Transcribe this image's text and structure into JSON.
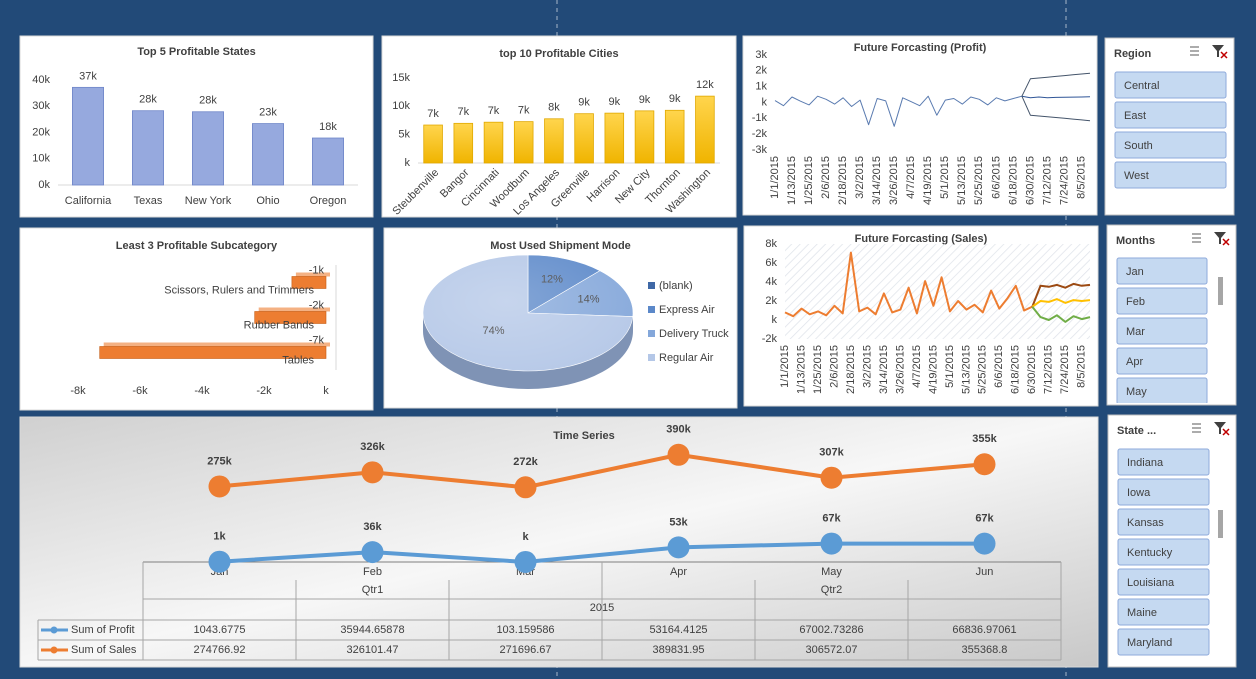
{
  "chart_data": [
    {
      "type": "bar",
      "title": "Top 5 Profitable States",
      "categories": [
        "California",
        "Texas",
        "New York",
        "Ohio",
        "Oregon"
      ],
      "values": [
        37200,
        28300,
        27900,
        23400,
        17900
      ],
      "value_labels": [
        "37k",
        "28k",
        "28k",
        "23k",
        "18k"
      ],
      "color": "#96a9de",
      "ylim": [
        0,
        40000
      ],
      "yticks": [
        {
          "value": 0,
          "label": "0k"
        },
        {
          "value": 10000,
          "label": "10k"
        },
        {
          "value": 20000,
          "label": "20k"
        },
        {
          "value": 30000,
          "label": "30k"
        },
        {
          "value": 40000,
          "label": "40k"
        }
      ]
    },
    {
      "type": "bar",
      "title": "top 10 Profitable Cities",
      "categories": [
        "Steubenville",
        "Bangor",
        "Cincinnati",
        "Woodbum",
        "Los Angeles",
        "Greenville",
        "Harrison",
        "New City",
        "Thornton",
        "Washington"
      ],
      "values": [
        6700,
        7000,
        7200,
        7300,
        7800,
        8700,
        8800,
        9200,
        9300,
        11800
      ],
      "value_labels": [
        "7k",
        "7k",
        "7k",
        "7k",
        "8k",
        "9k",
        "9k",
        "9k",
        "9k",
        "12k"
      ],
      "color": "#ffc000",
      "ylim": [
        0,
        15000
      ],
      "yticks": [
        {
          "value": 0,
          "label": "k"
        },
        {
          "value": 5000,
          "label": "5k"
        },
        {
          "value": 10000,
          "label": "10k"
        },
        {
          "value": 15000,
          "label": "15k"
        }
      ]
    },
    {
      "type": "line",
      "title": "Future Forcasting (Profit)",
      "categories": [
        "1/1/2015",
        null,
        "1/13/2015",
        null,
        "1/25/2015",
        null,
        "2/6/2015",
        null,
        "2/18/2015",
        null,
        "3/2/2015",
        null,
        "3/14/2015",
        null,
        "3/26/2015",
        null,
        "4/7/2015",
        null,
        "4/19/2015",
        null,
        "5/1/2015",
        null,
        "5/13/2015",
        null,
        "5/25/2015",
        null,
        "6/6/2015",
        null,
        "6/18/2015",
        null,
        "6/30/2015",
        null,
        "7/12/2015",
        null,
        "7/24/2015",
        null,
        "8/5/2015",
        null
      ],
      "series": [
        {
          "color": "#5a7bb0",
          "values": [
            120,
            -200,
            350,
            80,
            -150,
            400,
            200,
            -100,
            300,
            -250,
            150,
            -1400,
            250,
            100,
            -1500,
            300,
            50,
            -200,
            400,
            -800,
            150,
            250,
            -100,
            350,
            200,
            -150,
            300,
            100,
            250,
            400,
            null,
            null,
            null,
            null,
            null,
            null,
            null,
            null
          ]
        },
        {
          "color": "#44546a",
          "values": [
            null,
            null,
            null,
            null,
            null,
            null,
            null,
            null,
            null,
            null,
            null,
            null,
            null,
            null,
            null,
            null,
            null,
            null,
            null,
            null,
            null,
            null,
            null,
            null,
            null,
            null,
            null,
            null,
            null,
            400,
            1500,
            1550,
            1600,
            1650,
            1700,
            1750,
            1800,
            1850
          ]
        },
        {
          "color": "#2f5597",
          "values": [
            null,
            null,
            null,
            null,
            null,
            null,
            null,
            null,
            null,
            null,
            null,
            null,
            null,
            null,
            null,
            null,
            null,
            null,
            null,
            null,
            null,
            null,
            null,
            null,
            null,
            null,
            null,
            null,
            null,
            400,
            300,
            350,
            300,
            320,
            330,
            340,
            350,
            360
          ]
        },
        {
          "color": "#44546a",
          "values": [
            null,
            null,
            null,
            null,
            null,
            null,
            null,
            null,
            null,
            null,
            null,
            null,
            null,
            null,
            null,
            null,
            null,
            null,
            null,
            null,
            null,
            null,
            null,
            null,
            null,
            null,
            null,
            null,
            null,
            400,
            -800,
            -850,
            -900,
            -950,
            -1000,
            -1050,
            -1100,
            -1150
          ]
        }
      ],
      "ylim": [
        -3000,
        3000
      ],
      "yticks": [
        {
          "value": -3000,
          "label": "-3k"
        },
        {
          "value": -2000,
          "label": "-2k"
        },
        {
          "value": -1000,
          "label": "-1k"
        },
        {
          "value": 0,
          "label": "k"
        },
        {
          "value": 1000,
          "label": "1k"
        },
        {
          "value": 2000,
          "label": "2k"
        },
        {
          "value": 3000,
          "label": "3k"
        }
      ]
    },
    {
      "type": "bar",
      "orientation": "horizontal",
      "title": "Least 3 Profitable Subcategory",
      "categories": [
        "Tables",
        "Rubber Bands",
        "Scissors, Rulers and Trimmers"
      ],
      "values": [
        -7300,
        -2300,
        -1100
      ],
      "value_labels": [
        "-7k",
        "-2k",
        "-1k"
      ],
      "color": "#ed7d31",
      "xlim": [
        -8000,
        0
      ],
      "xticks": [
        {
          "value": -8000,
          "label": "-8k"
        },
        {
          "value": -6000,
          "label": "-6k"
        },
        {
          "value": -4000,
          "label": "-4k"
        },
        {
          "value": -2000,
          "label": "-2k"
        },
        {
          "value": 0,
          "label": "k"
        }
      ]
    },
    {
      "type": "pie",
      "title": "Most Used Shipment Mode",
      "categories": [
        "(blank)",
        "Express Air",
        "Delivery Truck",
        "Regular Air"
      ],
      "values": [
        0,
        12,
        14,
        74
      ],
      "value_labels": [
        null,
        "12%",
        "14%",
        "74%"
      ],
      "colors": [
        "#3f68a6",
        "#5b88c9",
        "#84a7da",
        "#b4c7e7"
      ],
      "legend": "right"
    },
    {
      "type": "line",
      "title": "Future Forcasting (Sales)",
      "categories": [
        "1/1/2015",
        null,
        "1/13/2015",
        null,
        "1/25/2015",
        null,
        "2/6/2015",
        null,
        "2/18/2015",
        null,
        "3/2/2015",
        null,
        "3/14/2015",
        null,
        "3/26/2015",
        null,
        "4/7/2015",
        null,
        "4/19/2015",
        null,
        "5/1/2015",
        null,
        "5/13/2015",
        null,
        "5/25/2015",
        null,
        "6/6/2015",
        null,
        "6/18/2015",
        null,
        "6/30/2015",
        null,
        "7/12/2015",
        null,
        "7/24/2015",
        null,
        "8/5/2015",
        null
      ],
      "series": [
        {
          "color": "#ed7d31",
          "values": [
            800,
            400,
            1200,
            600,
            900,
            500,
            1500,
            700,
            7100,
            900,
            1300,
            600,
            2800,
            800,
            1100,
            3400,
            700,
            4100,
            1500,
            4500,
            900,
            2000,
            1100,
            1600,
            800,
            3100,
            1200,
            2300,
            3600,
            1000,
            1400,
            null,
            null,
            null,
            null,
            null,
            null,
            null
          ]
        },
        {
          "color": "#9c4a12",
          "values": [
            null,
            null,
            null,
            null,
            null,
            null,
            null,
            null,
            null,
            null,
            null,
            null,
            null,
            null,
            null,
            null,
            null,
            null,
            null,
            null,
            null,
            null,
            null,
            null,
            null,
            null,
            null,
            null,
            null,
            null,
            1400,
            3600,
            3500,
            3700,
            3400,
            3800,
            3600,
            3700
          ]
        },
        {
          "color": "#ffc000",
          "values": [
            null,
            null,
            null,
            null,
            null,
            null,
            null,
            null,
            null,
            null,
            null,
            null,
            null,
            null,
            null,
            null,
            null,
            null,
            null,
            null,
            null,
            null,
            null,
            null,
            null,
            null,
            null,
            null,
            null,
            null,
            1400,
            2000,
            1900,
            2200,
            1800,
            2100,
            2000,
            2100
          ]
        },
        {
          "color": "#70ad47",
          "values": [
            null,
            null,
            null,
            null,
            null,
            null,
            null,
            null,
            null,
            null,
            null,
            null,
            null,
            null,
            null,
            null,
            null,
            null,
            null,
            null,
            null,
            null,
            null,
            null,
            null,
            null,
            null,
            null,
            null,
            null,
            1400,
            300,
            0,
            500,
            -200,
            400,
            100,
            300
          ]
        }
      ],
      "ylim": [
        -2000,
        8000
      ],
      "yticks": [
        {
          "value": -2000,
          "label": "-2k"
        },
        {
          "value": 0,
          "label": "k"
        },
        {
          "value": 2000,
          "label": "2k"
        },
        {
          "value": 4000,
          "label": "4k"
        },
        {
          "value": 6000,
          "label": "6k"
        },
        {
          "value": 8000,
          "label": "8k"
        }
      ]
    },
    {
      "type": "line",
      "title": "Time Series",
      "data_table": true,
      "categories": [
        "Jan",
        "Feb",
        "Mar",
        "Apr",
        "May",
        "Jun"
      ],
      "quarters": [
        "Qtr1",
        "Qtr2"
      ],
      "year": "2015",
      "series": [
        {
          "name": "Sum of Profit",
          "color": "#5b9bd5",
          "values": [
            1043.6775,
            35944.65878,
            103.159586,
            53164.4125,
            67002.73286,
            66836.97061
          ],
          "value_labels": [
            "1k",
            "36k",
            "k",
            "53k",
            "67k",
            "67k"
          ]
        },
        {
          "name": "Sum of Sales",
          "color": "#ed7d31",
          "values": [
            274766.92,
            326101.47,
            271696.67,
            389831.95,
            306572.07,
            355368.8
          ],
          "value_labels": [
            "275k",
            "326k",
            "272k",
            "390k",
            "307k",
            "355k"
          ]
        }
      ],
      "ylim": [
        0,
        400000
      ]
    }
  ],
  "slicers": [
    {
      "title": "Region",
      "items": [
        "Central",
        "East",
        "South",
        "West"
      ]
    },
    {
      "title": "Months",
      "items": [
        "Jan",
        "Feb",
        "Mar",
        "Apr",
        "May"
      ]
    },
    {
      "title": "State ...",
      "items": [
        "Indiana",
        "Iowa",
        "Kansas",
        "Kentucky",
        "Louisiana",
        "Maine",
        "Maryland"
      ]
    }
  ]
}
